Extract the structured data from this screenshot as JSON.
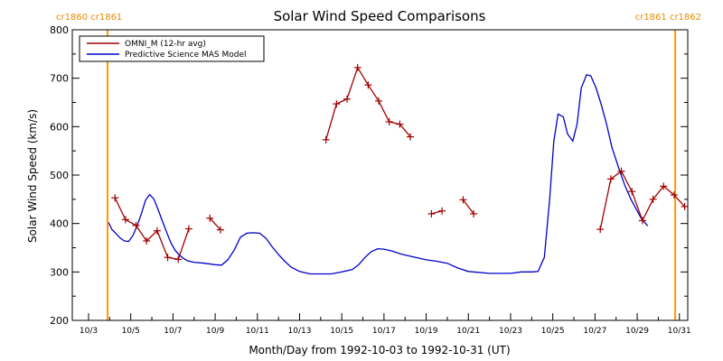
{
  "chart_data": {
    "type": "line",
    "title": "Solar Wind Speed Comparisons",
    "xlabel": "Month/Day from 1992-10-03 to 1992-10-31 (UT)",
    "ylabel": "Solar Wind Speed (km/s)",
    "xlim": [
      0,
      28
    ],
    "ylim": [
      200,
      800
    ],
    "x_ticks": [
      {
        "x": 0,
        "label": "10/3"
      },
      {
        "x": 2,
        "label": "10/5"
      },
      {
        "x": 4,
        "label": "10/7"
      },
      {
        "x": 6,
        "label": "10/9"
      },
      {
        "x": 8,
        "label": "10/11"
      },
      {
        "x": 10,
        "label": "10/13"
      },
      {
        "x": 12,
        "label": "10/15"
      },
      {
        "x": 14,
        "label": "10/17"
      },
      {
        "x": 16,
        "label": "10/19"
      },
      {
        "x": 18,
        "label": "10/21"
      },
      {
        "x": 20,
        "label": "10/23"
      },
      {
        "x": 22,
        "label": "10/25"
      },
      {
        "x": 24,
        "label": "10/27"
      },
      {
        "x": 26,
        "label": "10/29"
      },
      {
        "x": 28,
        "label": "10/31"
      }
    ],
    "y_ticks": [
      200,
      300,
      400,
      500,
      600,
      700,
      800
    ],
    "carrington_markers": [
      {
        "x": 0.9,
        "label": "cr1860 cr1861"
      },
      {
        "x": 27.8,
        "label": "cr1861 cr1862"
      }
    ],
    "legend_position": "top-left",
    "series": [
      {
        "name": "OMNI_M (12-hr avg)",
        "color": "#a00000",
        "marker": "plus",
        "segments": [
          [
            [
              1.25,
              453
            ],
            [
              1.75,
              408
            ],
            [
              2.25,
              396
            ],
            [
              2.75,
              364
            ],
            [
              3.25,
              385
            ],
            [
              3.75,
              330
            ],
            [
              4.25,
              326
            ],
            [
              4.75,
              389
            ]
          ],
          [
            [
              5.75,
              411
            ],
            [
              6.25,
              387
            ]
          ],
          [
            [
              11.25,
              573
            ],
            [
              11.75,
              647
            ],
            [
              12.25,
              657
            ],
            [
              12.75,
              722
            ],
            [
              13.25,
              686
            ],
            [
              13.75,
              653
            ],
            [
              14.25,
              610
            ],
            [
              14.75,
              605
            ],
            [
              15.25,
              579
            ]
          ],
          [
            [
              16.25,
              420
            ],
            [
              16.75,
              426
            ]
          ],
          [
            [
              17.75,
              449
            ],
            [
              18.25,
              420
            ]
          ],
          [
            [
              24.25,
              388
            ],
            [
              24.75,
              492
            ],
            [
              25.25,
              508
            ],
            [
              25.75,
              466
            ],
            [
              26.25,
              406
            ],
            [
              26.75,
              450
            ],
            [
              27.25,
              477
            ],
            [
              27.75,
              459
            ],
            [
              28.25,
              435
            ]
          ]
        ]
      },
      {
        "name": "Predictive Science MAS Model",
        "color": "#0000c8",
        "points": [
          [
            0.95,
            402
          ],
          [
            1.1,
            388
          ],
          [
            1.3,
            379
          ],
          [
            1.5,
            370
          ],
          [
            1.7,
            364
          ],
          [
            1.9,
            363
          ],
          [
            2.1,
            375
          ],
          [
            2.3,
            395
          ],
          [
            2.5,
            420
          ],
          [
            2.7,
            448
          ],
          [
            2.9,
            460
          ],
          [
            3.1,
            450
          ],
          [
            3.3,
            428
          ],
          [
            3.5,
            405
          ],
          [
            3.7,
            382
          ],
          [
            3.9,
            360
          ],
          [
            4.1,
            345
          ],
          [
            4.3,
            335
          ],
          [
            4.5,
            328
          ],
          [
            4.7,
            323
          ],
          [
            5.0,
            320
          ],
          [
            5.5,
            318
          ],
          [
            6.0,
            315
          ],
          [
            6.3,
            314
          ],
          [
            6.6,
            325
          ],
          [
            6.9,
            345
          ],
          [
            7.2,
            372
          ],
          [
            7.5,
            380
          ],
          [
            7.8,
            381
          ],
          [
            8.1,
            380
          ],
          [
            8.4,
            370
          ],
          [
            8.7,
            352
          ],
          [
            9.0,
            336
          ],
          [
            9.3,
            322
          ],
          [
            9.6,
            310
          ],
          [
            10.0,
            301
          ],
          [
            10.5,
            296
          ],
          [
            11.0,
            296
          ],
          [
            11.5,
            296
          ],
          [
            12.0,
            300
          ],
          [
            12.5,
            305
          ],
          [
            12.8,
            315
          ],
          [
            13.1,
            330
          ],
          [
            13.4,
            342
          ],
          [
            13.7,
            348
          ],
          [
            14.0,
            347
          ],
          [
            14.4,
            343
          ],
          [
            14.8,
            337
          ],
          [
            15.2,
            333
          ],
          [
            15.6,
            329
          ],
          [
            16.0,
            325
          ],
          [
            16.5,
            322
          ],
          [
            17.0,
            318
          ],
          [
            17.5,
            308
          ],
          [
            18.0,
            301
          ],
          [
            19.0,
            297
          ],
          [
            20.0,
            297
          ],
          [
            20.5,
            300
          ],
          [
            21.0,
            300
          ],
          [
            21.3,
            301
          ],
          [
            21.6,
            330
          ],
          [
            21.85,
            450
          ],
          [
            22.05,
            570
          ],
          [
            22.25,
            626
          ],
          [
            22.5,
            620
          ],
          [
            22.7,
            585
          ],
          [
            22.95,
            570
          ],
          [
            23.15,
            605
          ],
          [
            23.35,
            680
          ],
          [
            23.6,
            707
          ],
          [
            23.8,
            705
          ],
          [
            24.05,
            680
          ],
          [
            24.3,
            645
          ],
          [
            24.55,
            605
          ],
          [
            24.8,
            558
          ],
          [
            25.1,
            518
          ],
          [
            25.4,
            480
          ],
          [
            25.7,
            450
          ],
          [
            25.95,
            430
          ],
          [
            26.2,
            410
          ],
          [
            26.5,
            395
          ]
        ]
      }
    ]
  }
}
